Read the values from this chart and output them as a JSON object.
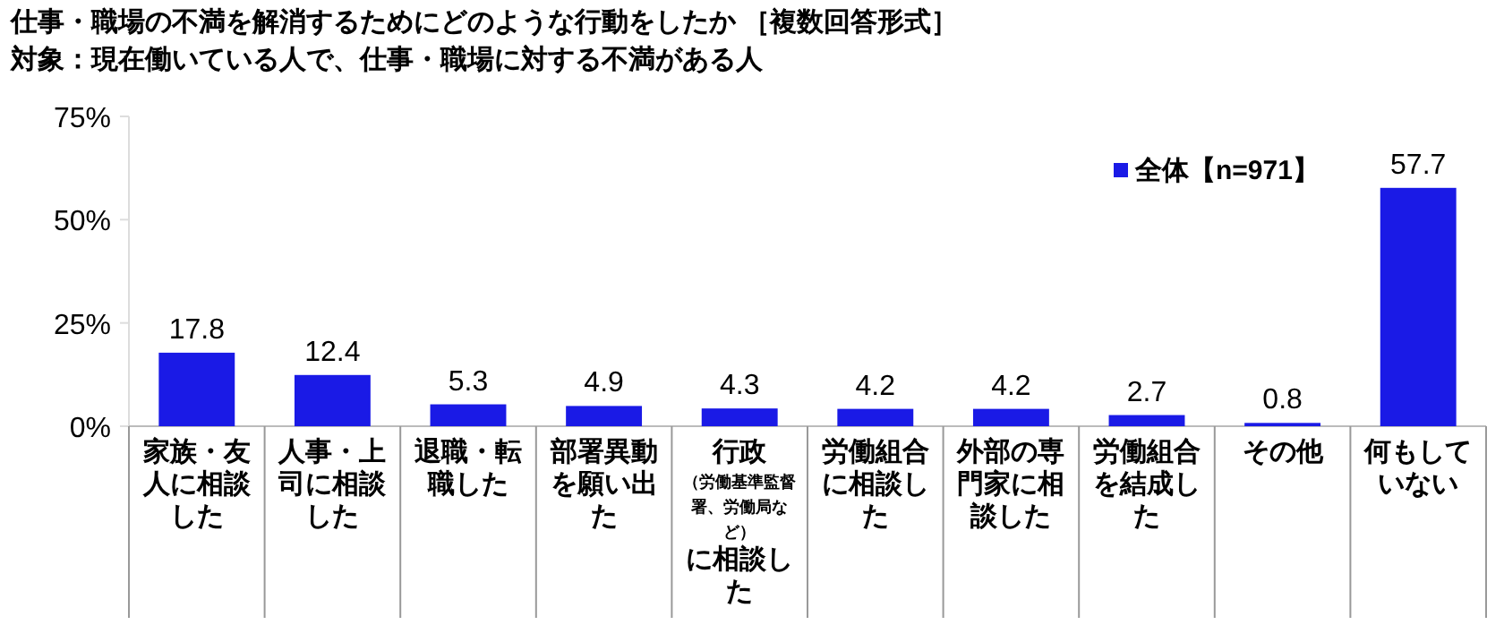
{
  "chart_data": {
    "type": "bar",
    "title": "仕事・職場の不満を解消するためにどのような行動をしたか ［複数回答形式］",
    "subtitle": "対象：現在働いている人で、仕事・職場に対する不満がある人",
    "categories": [
      "家族・友人に相談した",
      "人事・上司に相談した",
      "退職・転職した",
      "部署異動を願い出た",
      "行政（労働基準監督署、労働局など）に相談した",
      "労働組合に相談した",
      "外部の専門家に相談した",
      "労働組合を結成した",
      "その他",
      "何もしていない"
    ],
    "series": [
      {
        "name": "全体【n=971】",
        "color": "#1a1ae6",
        "values": [
          17.8,
          12.4,
          5.3,
          4.9,
          4.3,
          4.2,
          4.2,
          2.7,
          0.8,
          57.7
        ]
      }
    ],
    "ylim": [
      0,
      75
    ],
    "yticks": [
      {
        "value": 0,
        "label": "0%"
      },
      {
        "value": 25,
        "label": "25%"
      },
      {
        "value": 50,
        "label": "50%"
      },
      {
        "value": 75,
        "label": "75%"
      }
    ],
    "data_labels": true,
    "legend": "top right",
    "grid": false
  }
}
